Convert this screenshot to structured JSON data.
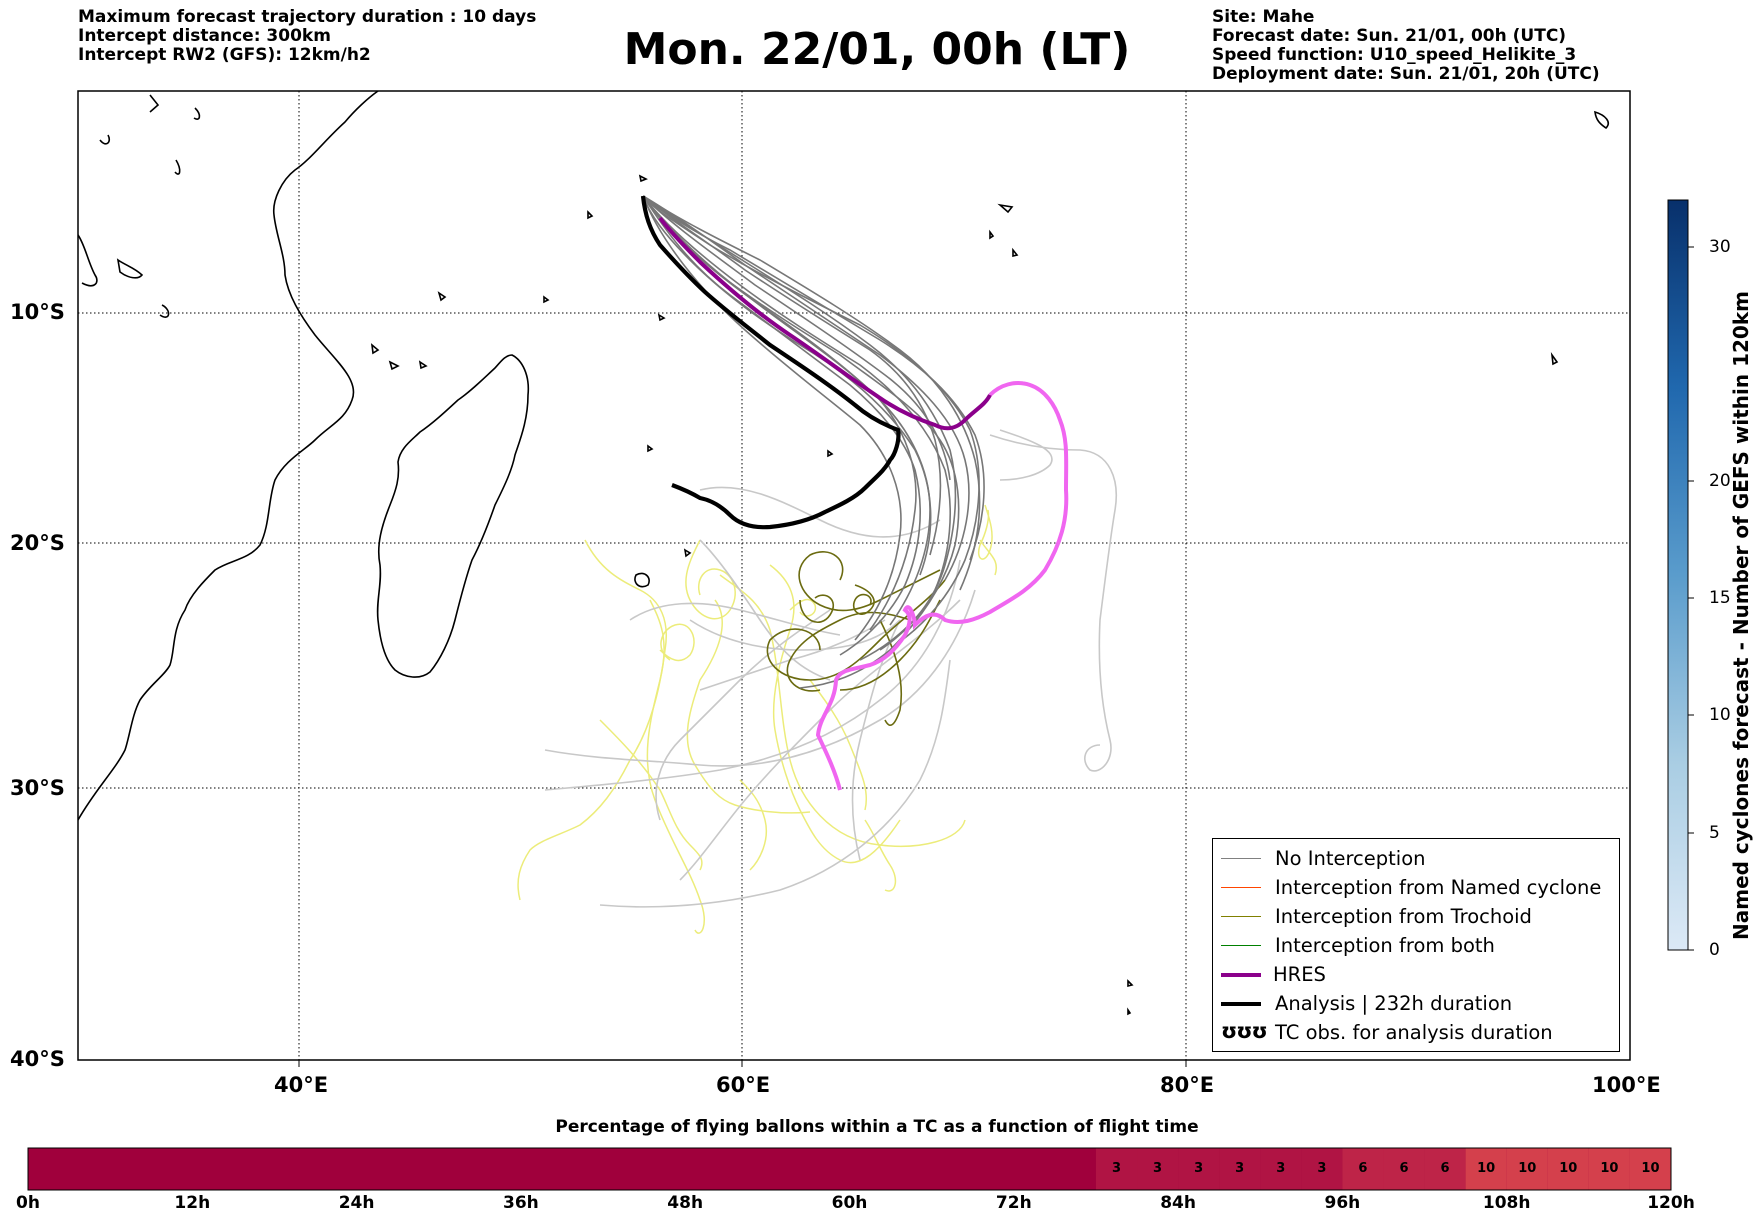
{
  "header_left": {
    "line1": "Maximum forecast trajectory duration : 10 days",
    "line2": "Intercept distance: 300km",
    "line3": "Intercept RW2 (GFS):  12km/h2"
  },
  "title": "Mon. 22/01, 00h (LT)",
  "header_right": {
    "line1": "Site: Mahe",
    "line2": "Forecast date: Sun. 21/01, 00h (UTC)",
    "line3": "Speed function: U10_speed_Helikite_3",
    "line4": "Deployment date: Sun. 21/01, 20h (UTC)"
  },
  "map": {
    "lat_labels": [
      "10°S",
      "20°S",
      "30°S",
      "40°S"
    ],
    "lon_labels": [
      "40°E",
      "60°E",
      "80°E",
      "100°E"
    ]
  },
  "legend": {
    "items": [
      {
        "label": "No Interception",
        "color": "#808080",
        "style": "thin"
      },
      {
        "label": "Interception from Named cyclone",
        "color": "#ff4500",
        "style": "thin"
      },
      {
        "label": "Interception from Trochoid",
        "color": "#808000",
        "style": "thin"
      },
      {
        "label": "Interception from both",
        "color": "#008000",
        "style": "thin"
      },
      {
        "label": "HRES",
        "color": "#8b008b",
        "style": "thick"
      },
      {
        "label": "Analysis | 232h duration",
        "color": "#000000",
        "style": "thick"
      },
      {
        "label": "TC obs. for analysis duration",
        "color": "#000000",
        "style": "symbol",
        "symbol": "ʊʊʊ"
      }
    ]
  },
  "colorbar": {
    "label": "Named cyclones forecast - Number of GEFS within 120km",
    "ticks": [
      "0",
      "5",
      "10",
      "15",
      "20",
      "30"
    ]
  },
  "flight_bar": {
    "title": "Percentage of flying ballons within a TC as a function of flight time",
    "ticks": [
      "0h",
      "12h",
      "24h",
      "36h",
      "48h",
      "60h",
      "72h",
      "84h",
      "96h",
      "108h",
      "120h"
    ],
    "segment_values": [
      "3",
      "3",
      "3",
      "3",
      "3",
      "3",
      "6",
      "6",
      "6",
      "10",
      "10",
      "10",
      "10",
      "10"
    ]
  },
  "colors": {
    "no_interception": "#777777",
    "light_traj": "#c8c8c8",
    "yellow_traj": "#ecec7a",
    "trochoid": "#6b6b10",
    "hres": "#8b008b",
    "hres_pink": "#f066f0",
    "analysis": "#000000",
    "bar_base": "#a0003c",
    "bar_3": "#b01444",
    "bar_6": "#be2448",
    "bar_10": "#d4404c"
  }
}
